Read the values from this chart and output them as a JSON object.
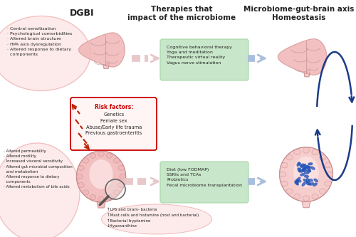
{
  "bg_color": "#ffffff",
  "title_dgbi": "DGBI",
  "title_therapies": "Therapies that\nimpact of the microbiome",
  "title_homeostasis": "Microbiome-gut-brain axis\nHomeostasis",
  "brain_bullet_top": [
    "Central sensitization",
    "Psychological comorbidities",
    "Altered brain structure",
    "HPA axis dysregulation",
    "Altered response to dietary",
    "components"
  ],
  "risk_factors_title": "Risk factors:",
  "risk_factors": [
    "Genetics",
    "Female sex",
    "Abuse/Early life trauma",
    "Previous gastroenteritis"
  ],
  "gut_bullet_bottom": [
    "Altered permeability",
    "Altered motility",
    "Increased visceral sensitivity",
    "Altered gut microbial composition",
    "and metabolism",
    "Altered response to dietary",
    "components",
    "Altered metabolism of bile acids"
  ],
  "therapy_top": [
    "Cognitive behavioral therapy",
    "Yoga and meditation",
    "Therapeutic virtual reality",
    "Vagus nerve stimulation"
  ],
  "therapy_bottom": [
    "Diet (low FODMAP)",
    "SSRIs and TCAs",
    "Probiotics",
    "Fecal microbiome transplantation"
  ],
  "bottom_annotation": [
    "↑LPS and Gram- bacteria",
    "↑Mast cells and histamine (host and bacterial)",
    "↑Bacterial tryptamine",
    "↓Hypoxanthine"
  ],
  "color_green_box": "#c8e6c9",
  "color_risk_border": "#cc0000",
  "color_dashed_red": "#bb2200",
  "color_arrow_blue": "#1a3a8a",
  "color_arrow_pink_light": "#e8c8c8",
  "color_arrow_blue_light": "#aabedd",
  "color_text": "#222222",
  "color_red_bold": "#cc0000",
  "color_pink_light": "#fde8e8",
  "color_pink_border": "#f0b8b8",
  "color_pink_organ": "#f0b0b0",
  "color_green_border": "#a5d6a7"
}
